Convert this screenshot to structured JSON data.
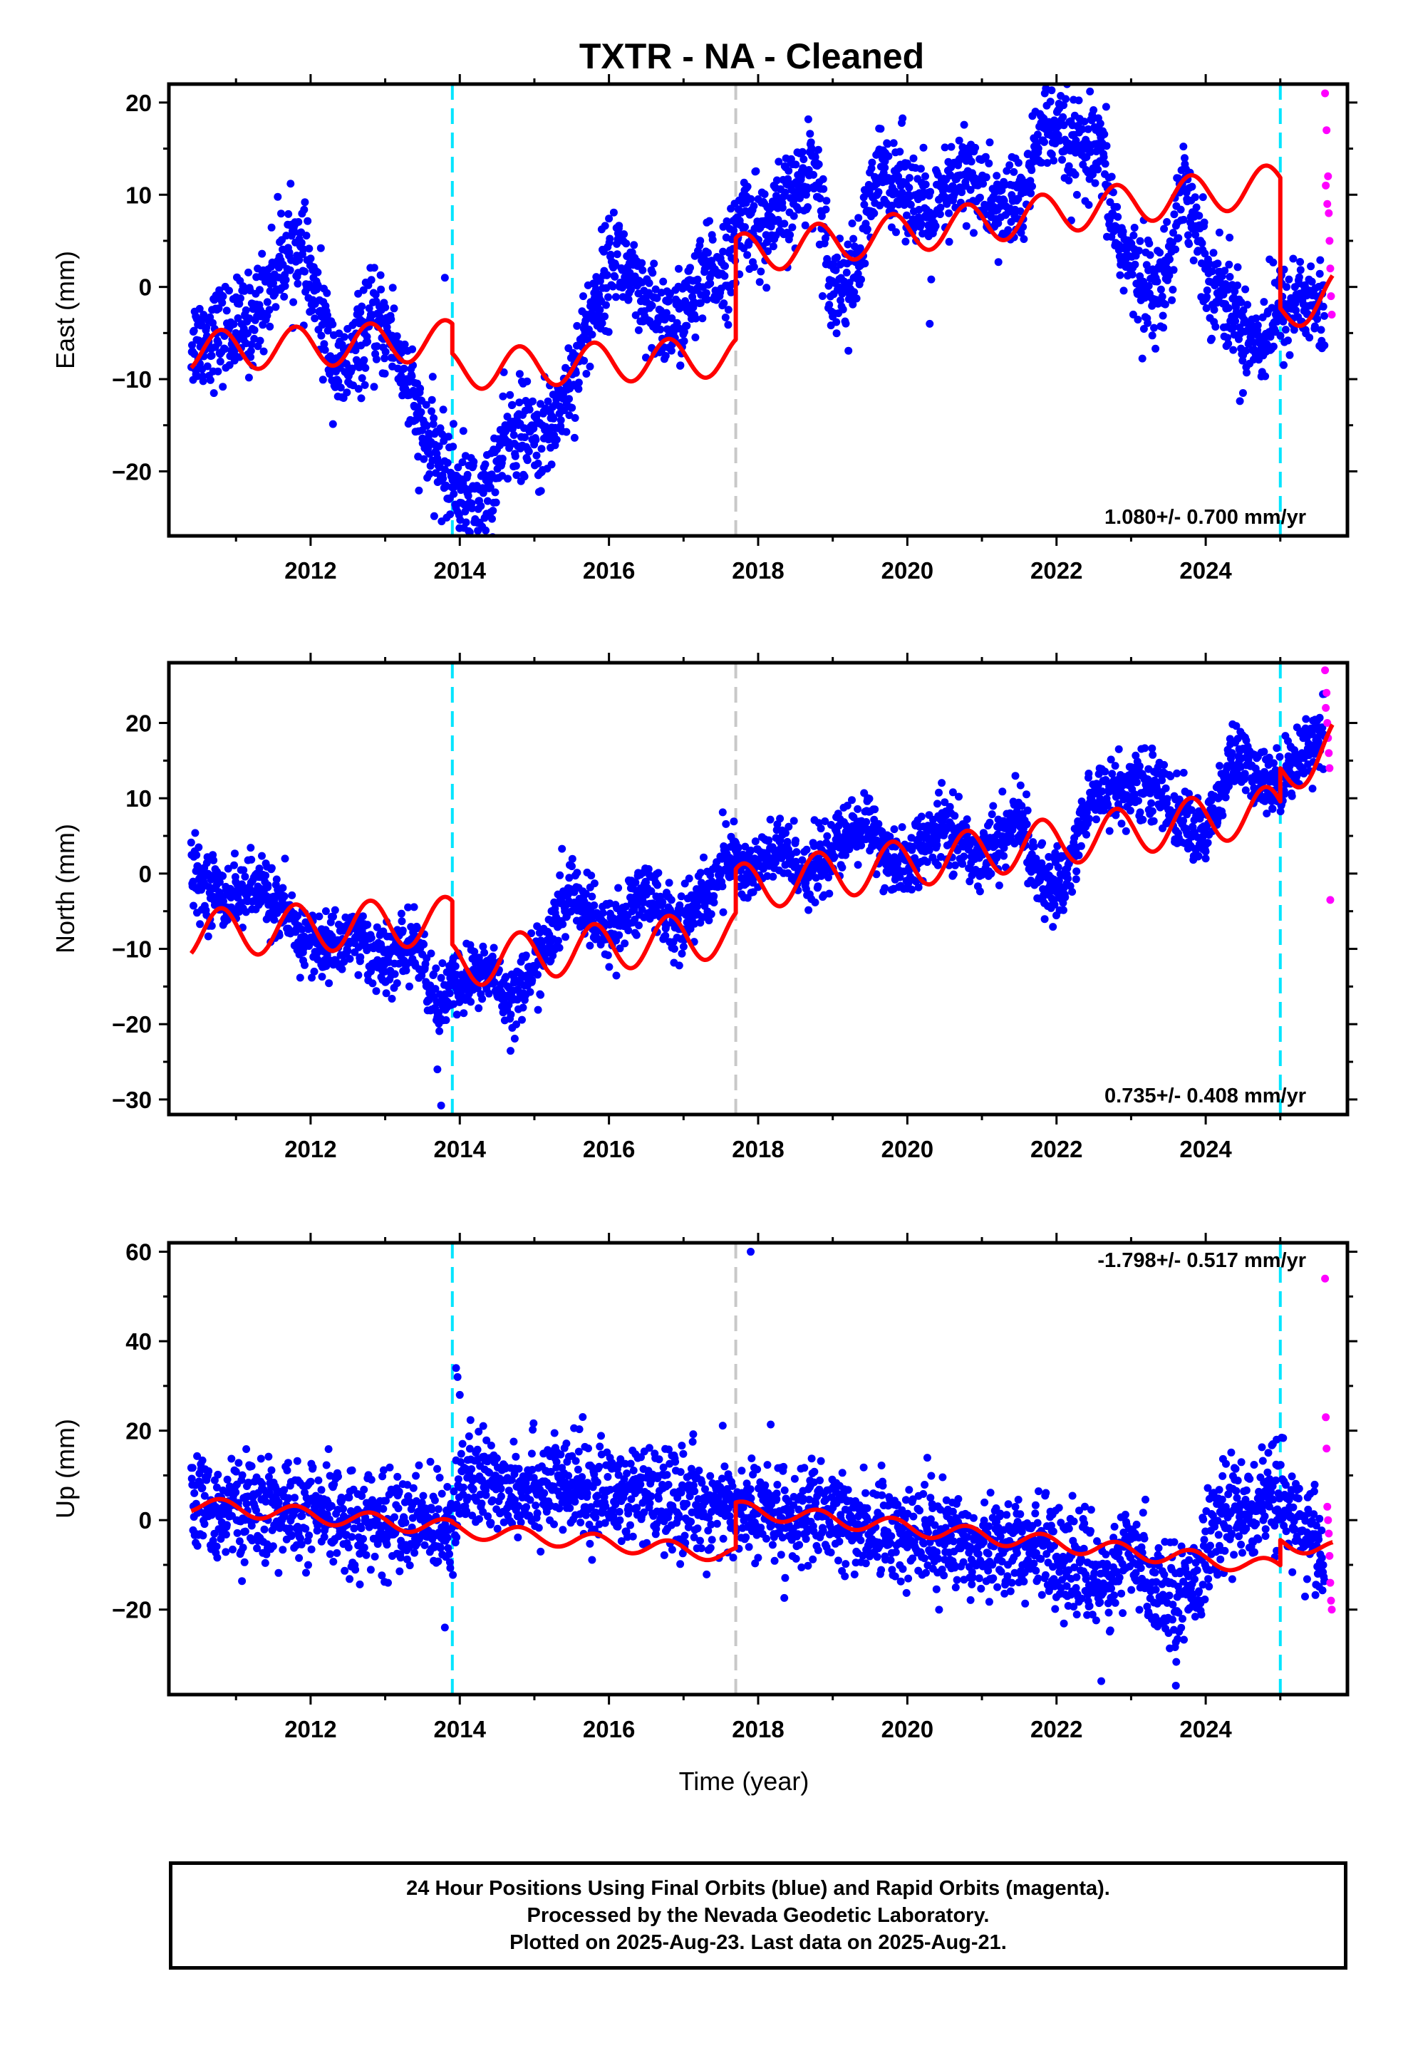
{
  "title": "TXTR  - NA - Cleaned",
  "colors": {
    "final_orbits": "#0000ff",
    "rapid_orbits": "#ff00ff",
    "model": "#ff0000",
    "equipment_change": "#00e5ff",
    "earthquake_offset": "#c8c8c8"
  },
  "chart_data": [
    {
      "type": "scatter",
      "ylabel": "East (mm)",
      "xlim": [
        2010.1,
        2025.9
      ],
      "ylim": [
        -27,
        22
      ],
      "x_ticks": [
        "2012",
        "2014",
        "2016",
        "2018",
        "2020",
        "2022",
        "2024"
      ],
      "y_ticks": [
        "−20",
        "−10",
        "0",
        "10",
        "20"
      ],
      "rate_label": "1.080+/- 0.700 mm/yr",
      "vertical_lines": [
        {
          "x": 2013.9,
          "kind": "equipment_change"
        },
        {
          "x": 2017.7,
          "kind": "earthquake_offset"
        },
        {
          "x": 2025.0,
          "kind": "equipment_change"
        }
      ],
      "final_trend": [
        [
          2010.4,
          -6
        ],
        [
          2010.8,
          -5
        ],
        [
          2011.2,
          -4
        ],
        [
          2011.6,
          3
        ],
        [
          2011.8,
          5
        ],
        [
          2012.1,
          -2
        ],
        [
          2012.4,
          -10
        ],
        [
          2012.8,
          -4
        ],
        [
          2013.1,
          -5
        ],
        [
          2013.5,
          -16
        ],
        [
          2013.9,
          -21
        ],
        [
          2014.3,
          -24
        ],
        [
          2014.7,
          -15
        ],
        [
          2015.1,
          -17
        ],
        [
          2015.5,
          -10
        ],
        [
          2015.8,
          -2
        ],
        [
          2016.1,
          4
        ],
        [
          2016.5,
          -3
        ],
        [
          2016.9,
          -4
        ],
        [
          2017.3,
          1
        ],
        [
          2017.65,
          3
        ],
        [
          2017.8,
          8
        ],
        [
          2018.1,
          6
        ],
        [
          2018.5,
          10
        ],
        [
          2018.75,
          14
        ],
        [
          2019.0,
          0
        ],
        [
          2019.3,
          1
        ],
        [
          2019.6,
          12
        ],
        [
          2019.9,
          12
        ],
        [
          2020.3,
          7
        ],
        [
          2020.8,
          13
        ],
        [
          2021.2,
          8
        ],
        [
          2021.6,
          10
        ],
        [
          2021.8,
          18
        ],
        [
          2022.2,
          15
        ],
        [
          2022.6,
          14
        ],
        [
          2022.8,
          6
        ],
        [
          2023.0,
          2
        ],
        [
          2023.4,
          -1
        ],
        [
          2023.7,
          12
        ],
        [
          2024.0,
          2
        ],
        [
          2024.4,
          -3
        ],
        [
          2024.7,
          -6
        ],
        [
          2024.95,
          -3
        ],
        [
          2025.3,
          -1
        ],
        [
          2025.6,
          -3
        ]
      ],
      "final_spread": 2.6,
      "final_outliers": [
        [
          2013.8,
          1
        ],
        [
          2014.3,
          -26
        ],
        [
          2024.5,
          -11.5
        ],
        [
          2023.2,
          0
        ],
        [
          2020.3,
          -4
        ]
      ],
      "rapid_points": [
        [
          2025.6,
          21
        ],
        [
          2025.62,
          17
        ],
        [
          2025.64,
          12
        ],
        [
          2025.65,
          8
        ],
        [
          2025.66,
          5
        ],
        [
          2025.67,
          2
        ],
        [
          2025.68,
          -1
        ],
        [
          2025.69,
          -3
        ],
        [
          2025.61,
          11
        ],
        [
          2025.63,
          9
        ]
      ],
      "model_line": {
        "offsets": [
          [
            2010.4,
            -7
          ],
          [
            2013.9,
            -9
          ],
          [
            2017.7,
            3.5
          ],
          [
            2025.0,
            -3
          ]
        ],
        "rate_segments": [
          [
            2010.4,
            2013.9,
            0.35
          ],
          [
            2013.9,
            2017.7,
            0.4
          ],
          [
            2017.7,
            2025.0,
            1.05
          ],
          [
            2025.0,
            2025.7,
            3.5
          ]
        ],
        "amp": 2.2,
        "phase": 0.55
      }
    },
    {
      "type": "scatter",
      "ylabel": "North (mm)",
      "xlim": [
        2010.1,
        2025.9
      ],
      "ylim": [
        -32,
        28
      ],
      "x_ticks": [
        "2012",
        "2014",
        "2016",
        "2018",
        "2020",
        "2022",
        "2024"
      ],
      "y_ticks": [
        "−30",
        "−20",
        "−10",
        "0",
        "10",
        "20"
      ],
      "rate_label": "0.735+/- 0.408 mm/yr",
      "vertical_lines": [
        {
          "x": 2013.9,
          "kind": "equipment_change"
        },
        {
          "x": 2017.7,
          "kind": "earthquake_offset"
        },
        {
          "x": 2025.0,
          "kind": "equipment_change"
        }
      ],
      "final_trend": [
        [
          2010.4,
          0
        ],
        [
          2010.8,
          -3
        ],
        [
          2011.4,
          -2
        ],
        [
          2011.8,
          -8
        ],
        [
          2012.2,
          -10
        ],
        [
          2012.6,
          -8
        ],
        [
          2013.0,
          -12
        ],
        [
          2013.4,
          -9
        ],
        [
          2013.7,
          -18
        ],
        [
          2013.9,
          -15
        ],
        [
          2014.4,
          -13
        ],
        [
          2014.7,
          -17
        ],
        [
          2015.2,
          -9
        ],
        [
          2015.5,
          -2
        ],
        [
          2015.9,
          -8
        ],
        [
          2016.2,
          -6
        ],
        [
          2016.5,
          -2
        ],
        [
          2016.9,
          -7
        ],
        [
          2017.3,
          -3
        ],
        [
          2017.65,
          3
        ],
        [
          2017.8,
          0
        ],
        [
          2018.3,
          3
        ],
        [
          2018.7,
          0
        ],
        [
          2019.1,
          4
        ],
        [
          2019.5,
          7
        ],
        [
          2019.8,
          0
        ],
        [
          2020.3,
          4
        ],
        [
          2020.5,
          7
        ],
        [
          2020.9,
          2
        ],
        [
          2021.3,
          5
        ],
        [
          2021.5,
          8
        ],
        [
          2021.8,
          -2
        ],
        [
          2022.1,
          -1
        ],
        [
          2022.5,
          11
        ],
        [
          2022.8,
          11
        ],
        [
          2023.3,
          12
        ],
        [
          2023.6,
          8
        ],
        [
          2024.0,
          5
        ],
        [
          2024.4,
          16
        ],
        [
          2024.7,
          12
        ],
        [
          2024.95,
          12
        ],
        [
          2025.3,
          16
        ],
        [
          2025.6,
          20
        ]
      ],
      "final_spread": 2.2,
      "final_outliers": [
        [
          2013.7,
          -26
        ],
        [
          2013.75,
          -30.8
        ],
        [
          2024.0,
          2
        ],
        [
          2020.0,
          -2
        ]
      ],
      "rapid_points": [
        [
          2025.6,
          27
        ],
        [
          2025.62,
          24
        ],
        [
          2025.63,
          20
        ],
        [
          2025.64,
          18
        ],
        [
          2025.65,
          16
        ],
        [
          2025.66,
          14
        ],
        [
          2025.67,
          -3.5
        ],
        [
          2025.61,
          22
        ]
      ],
      "model_line": {
        "offsets": [
          [
            2010.4,
            -8
          ],
          [
            2013.9,
            -12
          ],
          [
            2017.7,
            -2
          ],
          [
            2025.0,
            13
          ]
        ],
        "rate_segments": [
          [
            2010.4,
            2013.9,
            0.5
          ],
          [
            2013.9,
            2017.7,
            1.1
          ],
          [
            2017.7,
            2025.0,
            1.45
          ],
          [
            2025.0,
            2025.7,
            6
          ]
        ],
        "amp": 3.2,
        "phase": 0.55
      }
    },
    {
      "type": "scatter",
      "ylabel": "Up (mm)",
      "xlabel": "Time (year)",
      "xlim": [
        2010.1,
        2025.9
      ],
      "ylim": [
        -39,
        62
      ],
      "x_ticks": [
        "2012",
        "2014",
        "2016",
        "2018",
        "2020",
        "2022",
        "2024"
      ],
      "y_ticks": [
        "−20",
        "0",
        "20",
        "40",
        "60"
      ],
      "rate_label": "-1.798+/- 0.517 mm/yr",
      "vertical_lines": [
        {
          "x": 2013.9,
          "kind": "equipment_change"
        },
        {
          "x": 2017.7,
          "kind": "earthquake_offset"
        },
        {
          "x": 2025.0,
          "kind": "equipment_change"
        }
      ],
      "final_trend": [
        [
          2010.4,
          3
        ],
        [
          2011.5,
          2
        ],
        [
          2012.5,
          0
        ],
        [
          2013.5,
          -1
        ],
        [
          2013.9,
          0
        ],
        [
          2014.0,
          8
        ],
        [
          2015.0,
          8
        ],
        [
          2016.0,
          6
        ],
        [
          2017.0,
          4
        ],
        [
          2018.0,
          2
        ],
        [
          2019.0,
          0
        ],
        [
          2020.0,
          -3
        ],
        [
          2021.0,
          -5
        ],
        [
          2022.0,
          -7
        ],
        [
          2022.6,
          -14
        ],
        [
          2023.0,
          -8
        ],
        [
          2023.6,
          -18
        ],
        [
          2024.0,
          -8
        ],
        [
          2024.3,
          2
        ],
        [
          2024.95,
          4
        ],
        [
          2025.3,
          0
        ],
        [
          2025.6,
          -10
        ]
      ],
      "final_spread": 5.5,
      "final_outliers": [
        [
          2013.95,
          34
        ],
        [
          2013.97,
          32
        ],
        [
          2014.0,
          28
        ],
        [
          2017.9,
          60
        ],
        [
          2013.8,
          -24
        ],
        [
          2022.6,
          -36
        ],
        [
          2023.6,
          -37
        ],
        [
          2024.9,
          17
        ],
        [
          2024.95,
          18
        ]
      ],
      "rapid_points": [
        [
          2025.6,
          54
        ],
        [
          2025.61,
          23
        ],
        [
          2025.62,
          16
        ],
        [
          2025.63,
          3
        ],
        [
          2025.64,
          0
        ],
        [
          2025.65,
          -3
        ],
        [
          2025.66,
          -8
        ],
        [
          2025.67,
          -14
        ],
        [
          2025.68,
          -18
        ],
        [
          2025.69,
          -20
        ]
      ],
      "model_line": {
        "offsets": [
          [
            2010.4,
            3.5
          ],
          [
            2013.9,
            -2
          ],
          [
            2017.7,
            2.5
          ],
          [
            2025.0,
            -5
          ]
        ],
        "rate_segments": [
          [
            2010.4,
            2013.9,
            -1.5
          ],
          [
            2013.9,
            2017.7,
            -1.5
          ],
          [
            2017.7,
            2025.0,
            -1.8
          ],
          [
            2025.0,
            2025.7,
            -2
          ]
        ],
        "amp": 1.8,
        "phase": 0.55
      }
    }
  ],
  "footer": {
    "line1": "24 Hour Positions Using Final Orbits (blue) and Rapid Orbits (magenta).",
    "line2": "Processed by the Nevada Geodetic Laboratory.",
    "line3": "Plotted on 2025-Aug-23. Last data on 2025-Aug-21."
  }
}
